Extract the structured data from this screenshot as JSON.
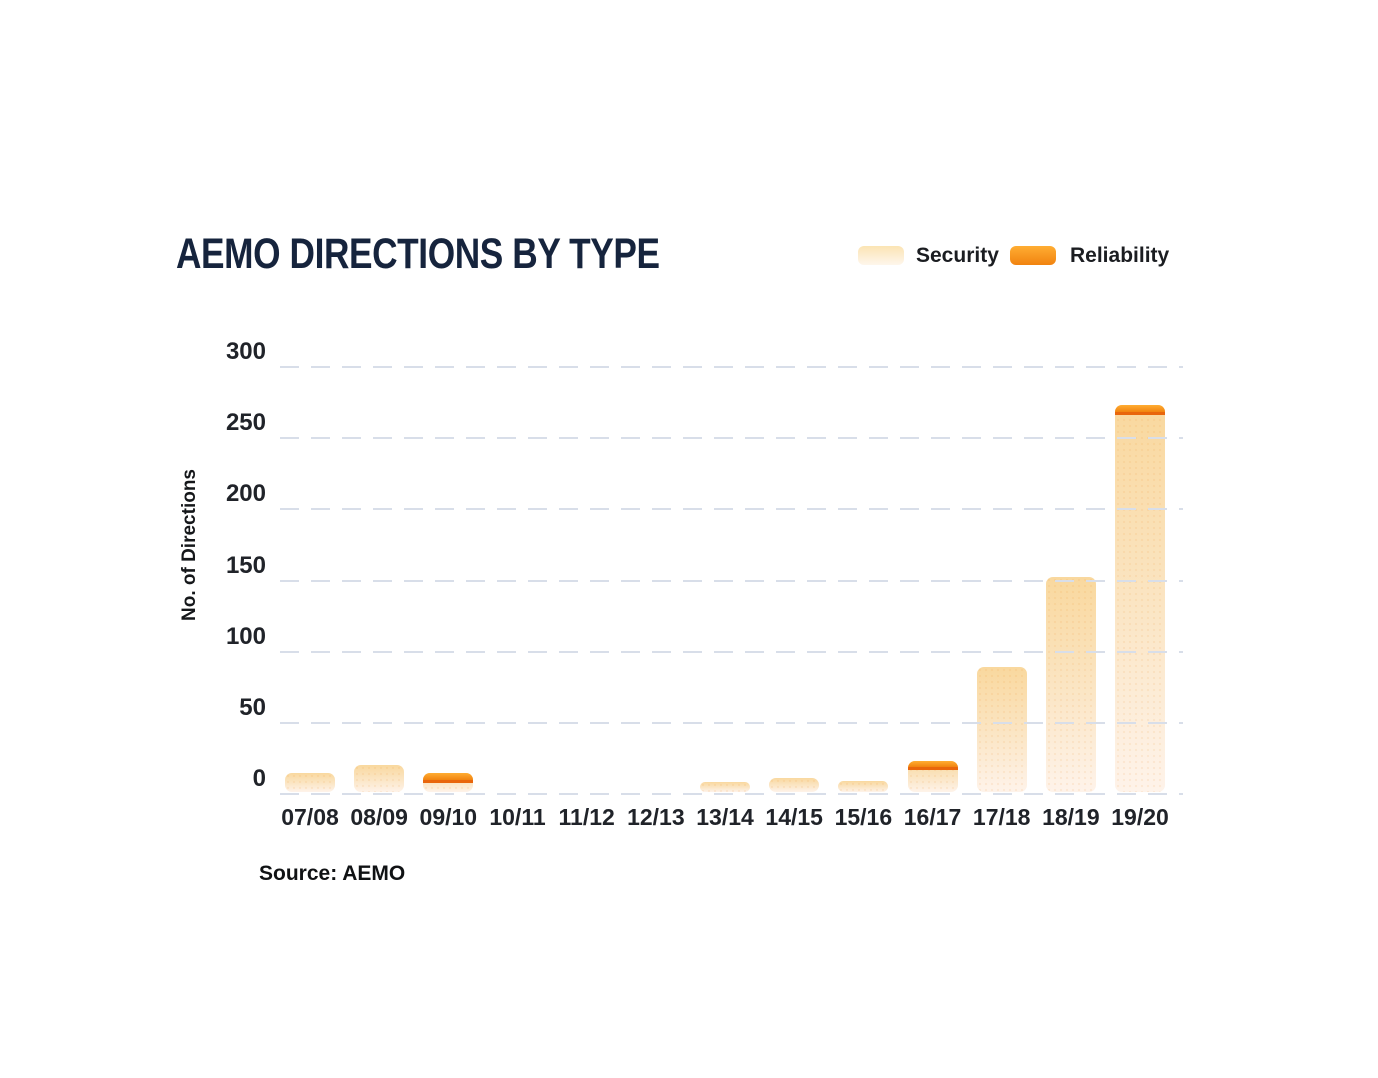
{
  "title": "AEMO DIRECTIONS BY TYPE",
  "source": "Source: AEMO",
  "chart_data": {
    "type": "bar",
    "stacked": true,
    "title": "AEMO DIRECTIONS BY TYPE",
    "categories": [
      "07/08",
      "08/09",
      "09/10",
      "10/11",
      "11/12",
      "12/13",
      "13/14",
      "14/15",
      "15/16",
      "16/17",
      "17/18",
      "18/19",
      "19/20"
    ],
    "series": [
      {
        "name": "Security",
        "values": [
          13,
          19,
          6,
          0,
          0,
          0,
          7,
          10,
          8,
          16,
          88,
          151,
          265
        ]
      },
      {
        "name": "Reliability",
        "values": [
          0,
          0,
          7,
          0,
          0,
          0,
          0,
          0,
          0,
          6,
          0,
          0,
          7
        ]
      }
    ],
    "xlabel": "",
    "ylabel": "No. of Directions",
    "yticks": [
      0,
      50,
      100,
      150,
      200,
      250,
      300
    ],
    "ylim": [
      0,
      300
    ],
    "grid": "horizontal-dashed",
    "legend_position": "top-right"
  },
  "colors": {
    "title": "#16243D",
    "grid": "#D8DEE9",
    "security_top": "#F9D89E",
    "security_mid": "#FBE6C6",
    "security_bottom": "#FEF3EA",
    "legend_security_top": "#FBE4B4",
    "legend_security_bottom": "#FEF6EC",
    "reliability_top": "#FFAD33",
    "reliability_bottom": "#F1830F",
    "reliability_edge": "#E9660C"
  }
}
